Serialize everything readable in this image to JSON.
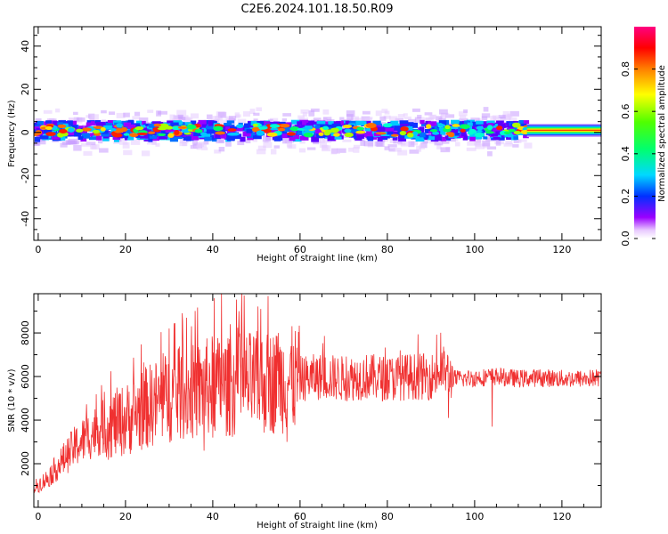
{
  "title": "C2E6.2024.101.18.50.R09",
  "chart_data": [
    {
      "type": "heatmap",
      "xlabel": "Height of straight line (km)",
      "ylabel": "Frequency (Hz)",
      "xlim": [
        -1,
        129
      ],
      "ylim": [
        -50,
        49
      ],
      "xticks": [
        "0",
        "20",
        "40",
        "60",
        "80",
        "100",
        "120"
      ],
      "yticks": [
        "40",
        "20",
        "0",
        "-20",
        "-40"
      ],
      "colorbar": {
        "label": "Normalized spectral amplitude",
        "range": [
          0,
          1
        ],
        "ticks": [
          "0.0",
          "0.2",
          "0.4",
          "0.6",
          "0.8"
        ]
      },
      "signal_band": {
        "x_range": [
          -1,
          112
        ],
        "center_frequency": 1,
        "core_halfwidth_hz": 4,
        "halo_halfwidth_hz": 11,
        "steady_band_x_range": [
          112,
          129
        ],
        "steady_band_halfwidth_hz": 3
      }
    },
    {
      "type": "line",
      "xlabel": "Height of straight line (km)",
      "ylabel": "SNR (10 * v/v)",
      "xlim": [
        -1,
        129
      ],
      "ylim": [
        0,
        9800
      ],
      "xticks": [
        "0",
        "20",
        "40",
        "60",
        "80",
        "100",
        "120"
      ],
      "yticks": [
        "2000",
        "4000",
        "6000",
        "8000"
      ],
      "color": "#f03030",
      "envelope": {
        "x": [
          -1,
          2,
          5,
          8,
          11,
          14,
          17,
          20,
          24,
          28,
          32,
          36,
          40,
          44,
          48,
          52,
          56,
          60,
          65,
          70,
          75,
          80,
          85,
          90,
          93,
          95,
          98,
          101,
          105,
          110,
          115,
          120,
          125,
          129
        ],
        "y": [
          900,
          1300,
          2000,
          2700,
          3200,
          3600,
          3800,
          4000,
          4500,
          4900,
          5200,
          5300,
          5600,
          5500,
          5700,
          5700,
          5800,
          5900,
          6000,
          5900,
          6000,
          5900,
          6000,
          6000,
          6300,
          5900,
          5900,
          5950,
          6000,
          5900,
          5950,
          5900,
          5900,
          5950
        ]
      },
      "peaks": [
        {
          "x": 42,
          "y": 9800
        },
        {
          "x": 51,
          "y": 9100
        },
        {
          "x": 46,
          "y": 9000
        },
        {
          "x": 33,
          "y": 8900
        },
        {
          "x": 34,
          "y": 8700
        },
        {
          "x": 44,
          "y": 8400
        },
        {
          "x": 30,
          "y": 8200
        },
        {
          "x": 38,
          "y": 8300
        },
        {
          "x": 55,
          "y": 8000
        },
        {
          "x": 94,
          "y": 6700
        }
      ],
      "dips": [
        {
          "x": 40,
          "y": 3200
        },
        {
          "x": 57,
          "y": 3000
        },
        {
          "x": 94,
          "y": 4100
        },
        {
          "x": 104,
          "y": 3700
        },
        {
          "x": 38,
          "y": 2600
        }
      ]
    }
  ]
}
